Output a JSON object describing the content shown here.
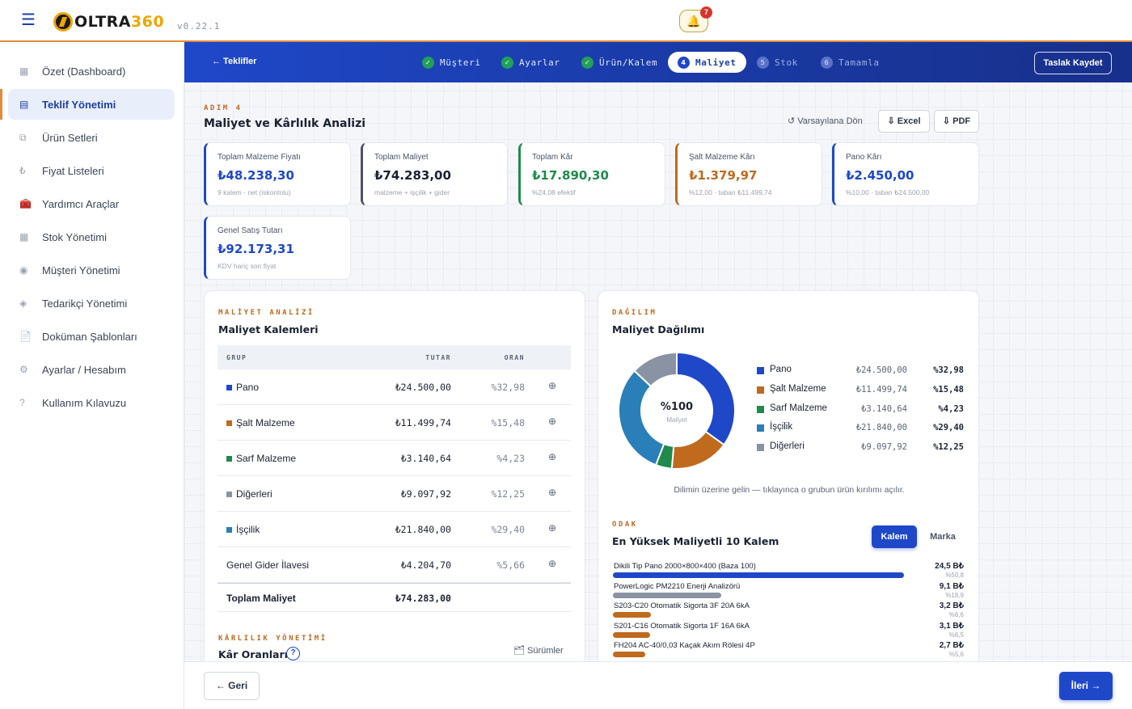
{
  "app": {
    "logo_main": "OLTRA",
    "logo_num": "360",
    "version": "v0.22.1",
    "notification_count": "7"
  },
  "sidebar": {
    "items": [
      {
        "label": "Özet (Dashboard)",
        "icon": "dashboard-icon"
      },
      {
        "label": "Teklif Yönetimi",
        "icon": "document-icon",
        "active": true
      },
      {
        "label": "Ürün Setleri",
        "icon": "set-icon"
      },
      {
        "label": "Fiyat Listeleri",
        "icon": "lira-icon"
      },
      {
        "label": "Yardımcı Araçlar",
        "icon": "toolbox-icon"
      },
      {
        "label": "Stok Yönetimi",
        "icon": "stock-icon"
      },
      {
        "label": "Müşteri Yönetimi",
        "icon": "customer-icon"
      },
      {
        "label": "Tedarikçi Yönetimi",
        "icon": "supplier-icon"
      },
      {
        "label": "Doküman Şablonları",
        "icon": "template-icon"
      },
      {
        "label": "Ayarlar / Hesabım",
        "icon": "settings-icon"
      },
      {
        "label": "Kullanım Kılavuzu",
        "icon": "help-icon"
      }
    ]
  },
  "stepper": {
    "back_label": "← Teklifler",
    "steps": [
      {
        "label": "Müşteri",
        "marker": "✓"
      },
      {
        "label": "Ayarlar",
        "marker": "✓"
      },
      {
        "label": "Ürün/Kalem",
        "marker": "✓"
      },
      {
        "label": "Maliyet",
        "marker": "4"
      },
      {
        "label": "Stok",
        "marker": "5"
      },
      {
        "label": "Tamamla",
        "marker": "6"
      }
    ],
    "draft_label": "Taslak Kaydet"
  },
  "page": {
    "eyebrow": "ADIM 4",
    "title": "Maliyet ve Kârlılık Analizi",
    "reset_label": "↺ Varsayılana Dön",
    "excel_label": "⇩ Excel",
    "pdf_label": "⇩ PDF"
  },
  "kpis": [
    {
      "label": "Toplam Malzeme Fiyatı",
      "value": "₺48.238,30",
      "sub": "9 kalem · net (iskontolu)",
      "color": "#1f48c9"
    },
    {
      "label": "Toplam Maliyet",
      "value": "₺74.283,00",
      "sub": "malzeme + işçilik + gider",
      "color": "#4a5466"
    },
    {
      "label": "Toplam Kâr",
      "value": "₺17.890,30",
      "sub": "%24,08 efektif",
      "color": "#1f8a4c"
    },
    {
      "label": "Şalt Malzeme Kârı",
      "value": "₺1.379,97",
      "sub": "%12,00 · taban ₺11.499,74",
      "color": "#c06a1e"
    },
    {
      "label": "Pano Kârı",
      "value": "₺2.450,00",
      "sub": "%10,00 · taban ₺24.500,00",
      "color": "#1f48c9"
    },
    {
      "label": "Genel Satış Tutarı",
      "value": "₺92.173,31",
      "sub": "KDV hariç son fiyat",
      "color": "#1f48c9"
    }
  ],
  "cost_panel": {
    "eyebrow": "MALİYET ANALİZİ",
    "title": "Maliyet Kalemleri",
    "headers": {
      "group": "GRUP",
      "amount": "TUTAR",
      "ratio": "ORAN"
    },
    "rows": [
      {
        "group": "Pano",
        "amount": "₺24.500,00",
        "ratio": "%32,98",
        "color": "#1f48c9"
      },
      {
        "group": "Şalt Malzeme",
        "amount": "₺11.499,74",
        "ratio": "%15,48",
        "color": "#c06a1e"
      },
      {
        "group": "Sarf Malzeme",
        "amount": "₺3.140,64",
        "ratio": "%4,23",
        "color": "#1f8a4c"
      },
      {
        "group": "Diğerleri",
        "amount": "₺9.097,92",
        "ratio": "%12,25",
        "color": "#8a93a3"
      },
      {
        "group": "İşçilik",
        "amount": "₺21.840,00",
        "ratio": "%29,40",
        "color": "#2a7fb8"
      },
      {
        "group": "Genel Gider İlavesi",
        "amount": "₺4.204,70",
        "ratio": "%5,66",
        "color": ""
      }
    ],
    "action_icon": "⊕",
    "total": {
      "label": "Toplam Maliyet",
      "amount": "₺74.283,00"
    },
    "profit_eyebrow": "KÂRLILIK YÖNETİMİ",
    "profit_title": "Kâr Oranları",
    "profit_help": "?",
    "versions_label": "🗂 Sürümler"
  },
  "distribution": {
    "eyebrow": "DAĞILIM",
    "title": "Maliyet Dağılımı",
    "center_value": "%100",
    "center_label": "Maliyet",
    "hint": "Dilimin üzerine gelin — tıklayınca o grubun ürün kırılımı açılır.",
    "chart_data": {
      "type": "pie",
      "donut": true,
      "center_text": "%100 Maliyet",
      "legend": "right",
      "slices": [
        {
          "name": "Pano",
          "value": 24500.0,
          "amount": "₺24.500,00",
          "percent": "%32,98",
          "color": "#1f48c9"
        },
        {
          "name": "Şalt Malzeme",
          "value": 11499.74,
          "amount": "₺11.499,74",
          "percent": "%15,48",
          "color": "#c06a1e"
        },
        {
          "name": "Sarf Malzeme",
          "value": 3140.64,
          "amount": "₺3.140,64",
          "percent": "%4,23",
          "color": "#1f8a4c"
        },
        {
          "name": "İşçilik",
          "value": 21840.0,
          "amount": "₺21.840,00",
          "percent": "%29,40",
          "color": "#2a7fb8"
        },
        {
          "name": "Diğerleri",
          "value": 9097.92,
          "amount": "₺9.097,92",
          "percent": "%12,25",
          "color": "#8a93a3"
        }
      ]
    }
  },
  "top_items": {
    "eyebrow": "ODAK",
    "title": "En Yüksek Maliyetli 10 Kalem",
    "toggle_on": "Kalem",
    "toggle_off": "Marka",
    "chart_data": {
      "type": "bar",
      "orientation": "horizontal",
      "xlim": [
        0,
        24.5
      ],
      "items": [
        {
          "name": "Dikili Tip Pano 2000×800×400 (Baza 100)",
          "value": 24.5,
          "value_label": "24,5 B₺",
          "percent": "%50,8",
          "color": "#1f48c9"
        },
        {
          "name": "PowerLogic PM2210 Enerji Analizörü",
          "value": 9.1,
          "value_label": "9,1 B₺",
          "percent": "%18,9",
          "color": "#8a93a3"
        },
        {
          "name": "S203-C20 Otomatik Sigorta 3F 20A 6kA",
          "value": 3.2,
          "value_label": "3,2 B₺",
          "percent": "%6,6",
          "color": "#c06a1e"
        },
        {
          "name": "S201-C16 Otomatik Sigorta 1F 16A 6kA",
          "value": 3.1,
          "value_label": "3,1 B₺",
          "percent": "%6,5",
          "color": "#c06a1e"
        },
        {
          "name": "FH204 AC-40/0,03 Kaçak Akım Rölesi 4P",
          "value": 2.7,
          "value_label": "2,7 B₺",
          "percent": "%5,6",
          "color": "#c06a1e"
        }
      ]
    }
  },
  "footer": {
    "back_label": "← Geri",
    "next_label": "İleri →"
  }
}
